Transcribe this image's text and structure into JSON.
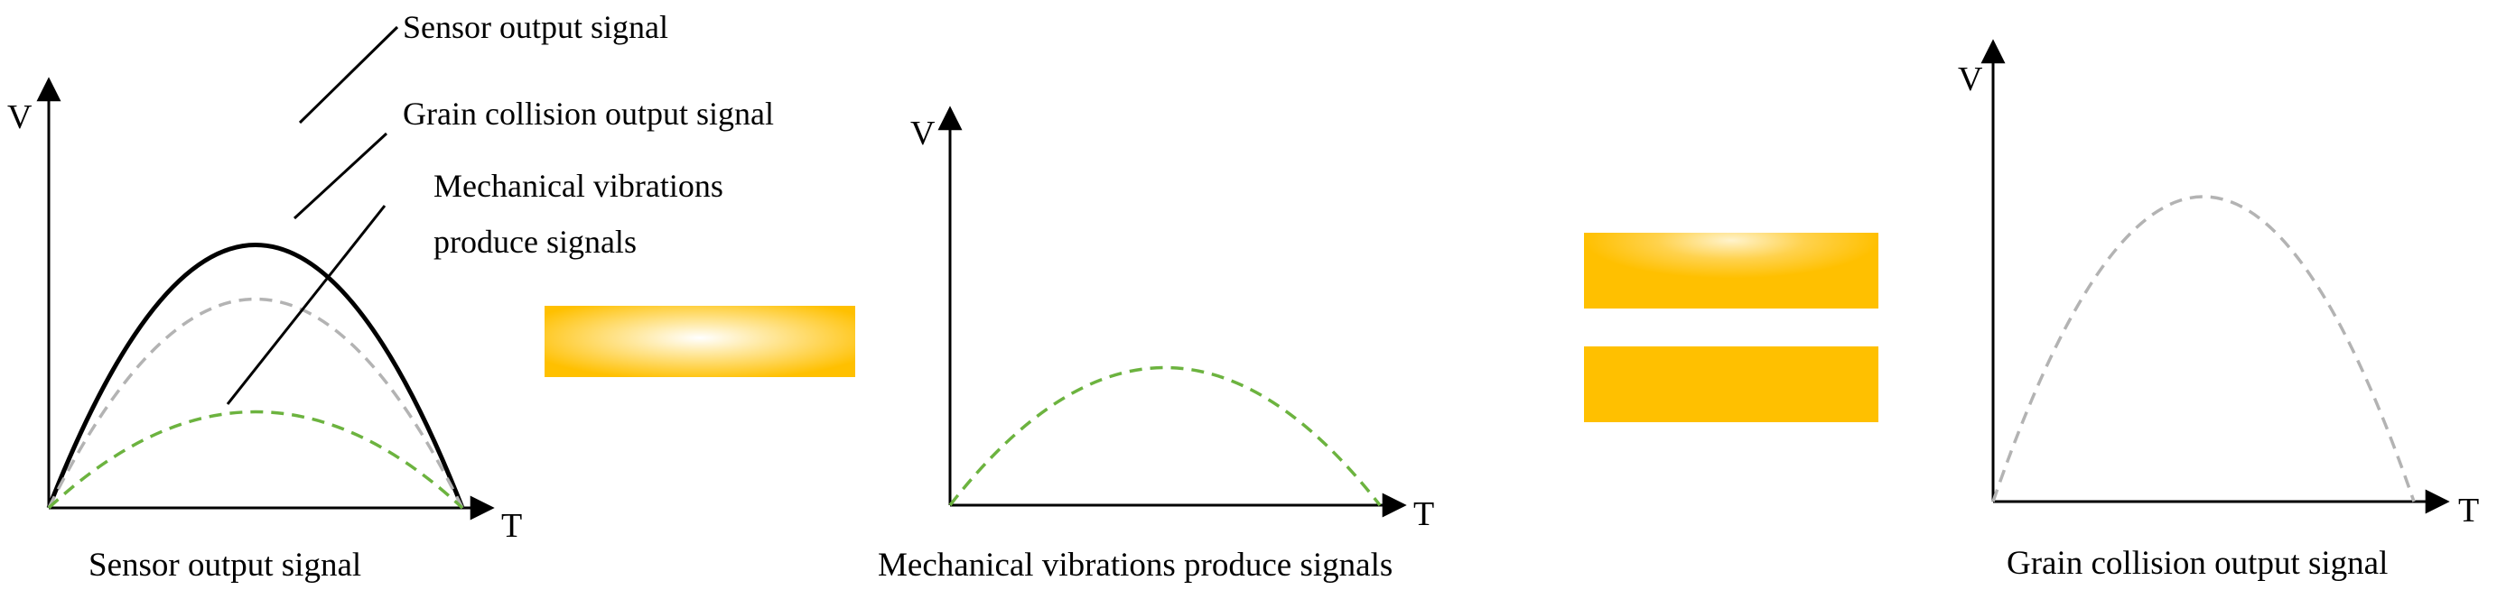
{
  "panels": {
    "sensor": {
      "y_axis": "V",
      "x_axis": "T",
      "caption": "Sensor output signal",
      "callouts": {
        "sensor": "Sensor output signal",
        "grain": "Grain collision output signal",
        "vibration_line1": "Mechanical vibrations",
        "vibration_line2": "produce signals"
      },
      "curves": [
        {
          "name": "sensor output",
          "peak": 1.0,
          "style": "solid",
          "color": "#000000"
        },
        {
          "name": "grain collision",
          "peak": 0.75,
          "style": "dashed",
          "color": "#b3b3b3"
        },
        {
          "name": "mechanical vibrations",
          "peak": 0.24,
          "style": "dashed",
          "color": "#6cb33f"
        }
      ]
    },
    "vibration": {
      "y_axis": "V",
      "x_axis": "T",
      "caption": "Mechanical vibrations produce signals",
      "curve": {
        "name": "mechanical vibrations",
        "style": "dashed",
        "color": "#6cb33f"
      }
    },
    "grain": {
      "y_axis": "V",
      "x_axis": "T",
      "caption": "Grain collision output signal",
      "curve": {
        "name": "grain collision",
        "style": "dashed",
        "color": "#b3b3b3"
      }
    }
  },
  "operators": {
    "minus": "minus",
    "equals": "equals",
    "color": "#ffc000"
  }
}
